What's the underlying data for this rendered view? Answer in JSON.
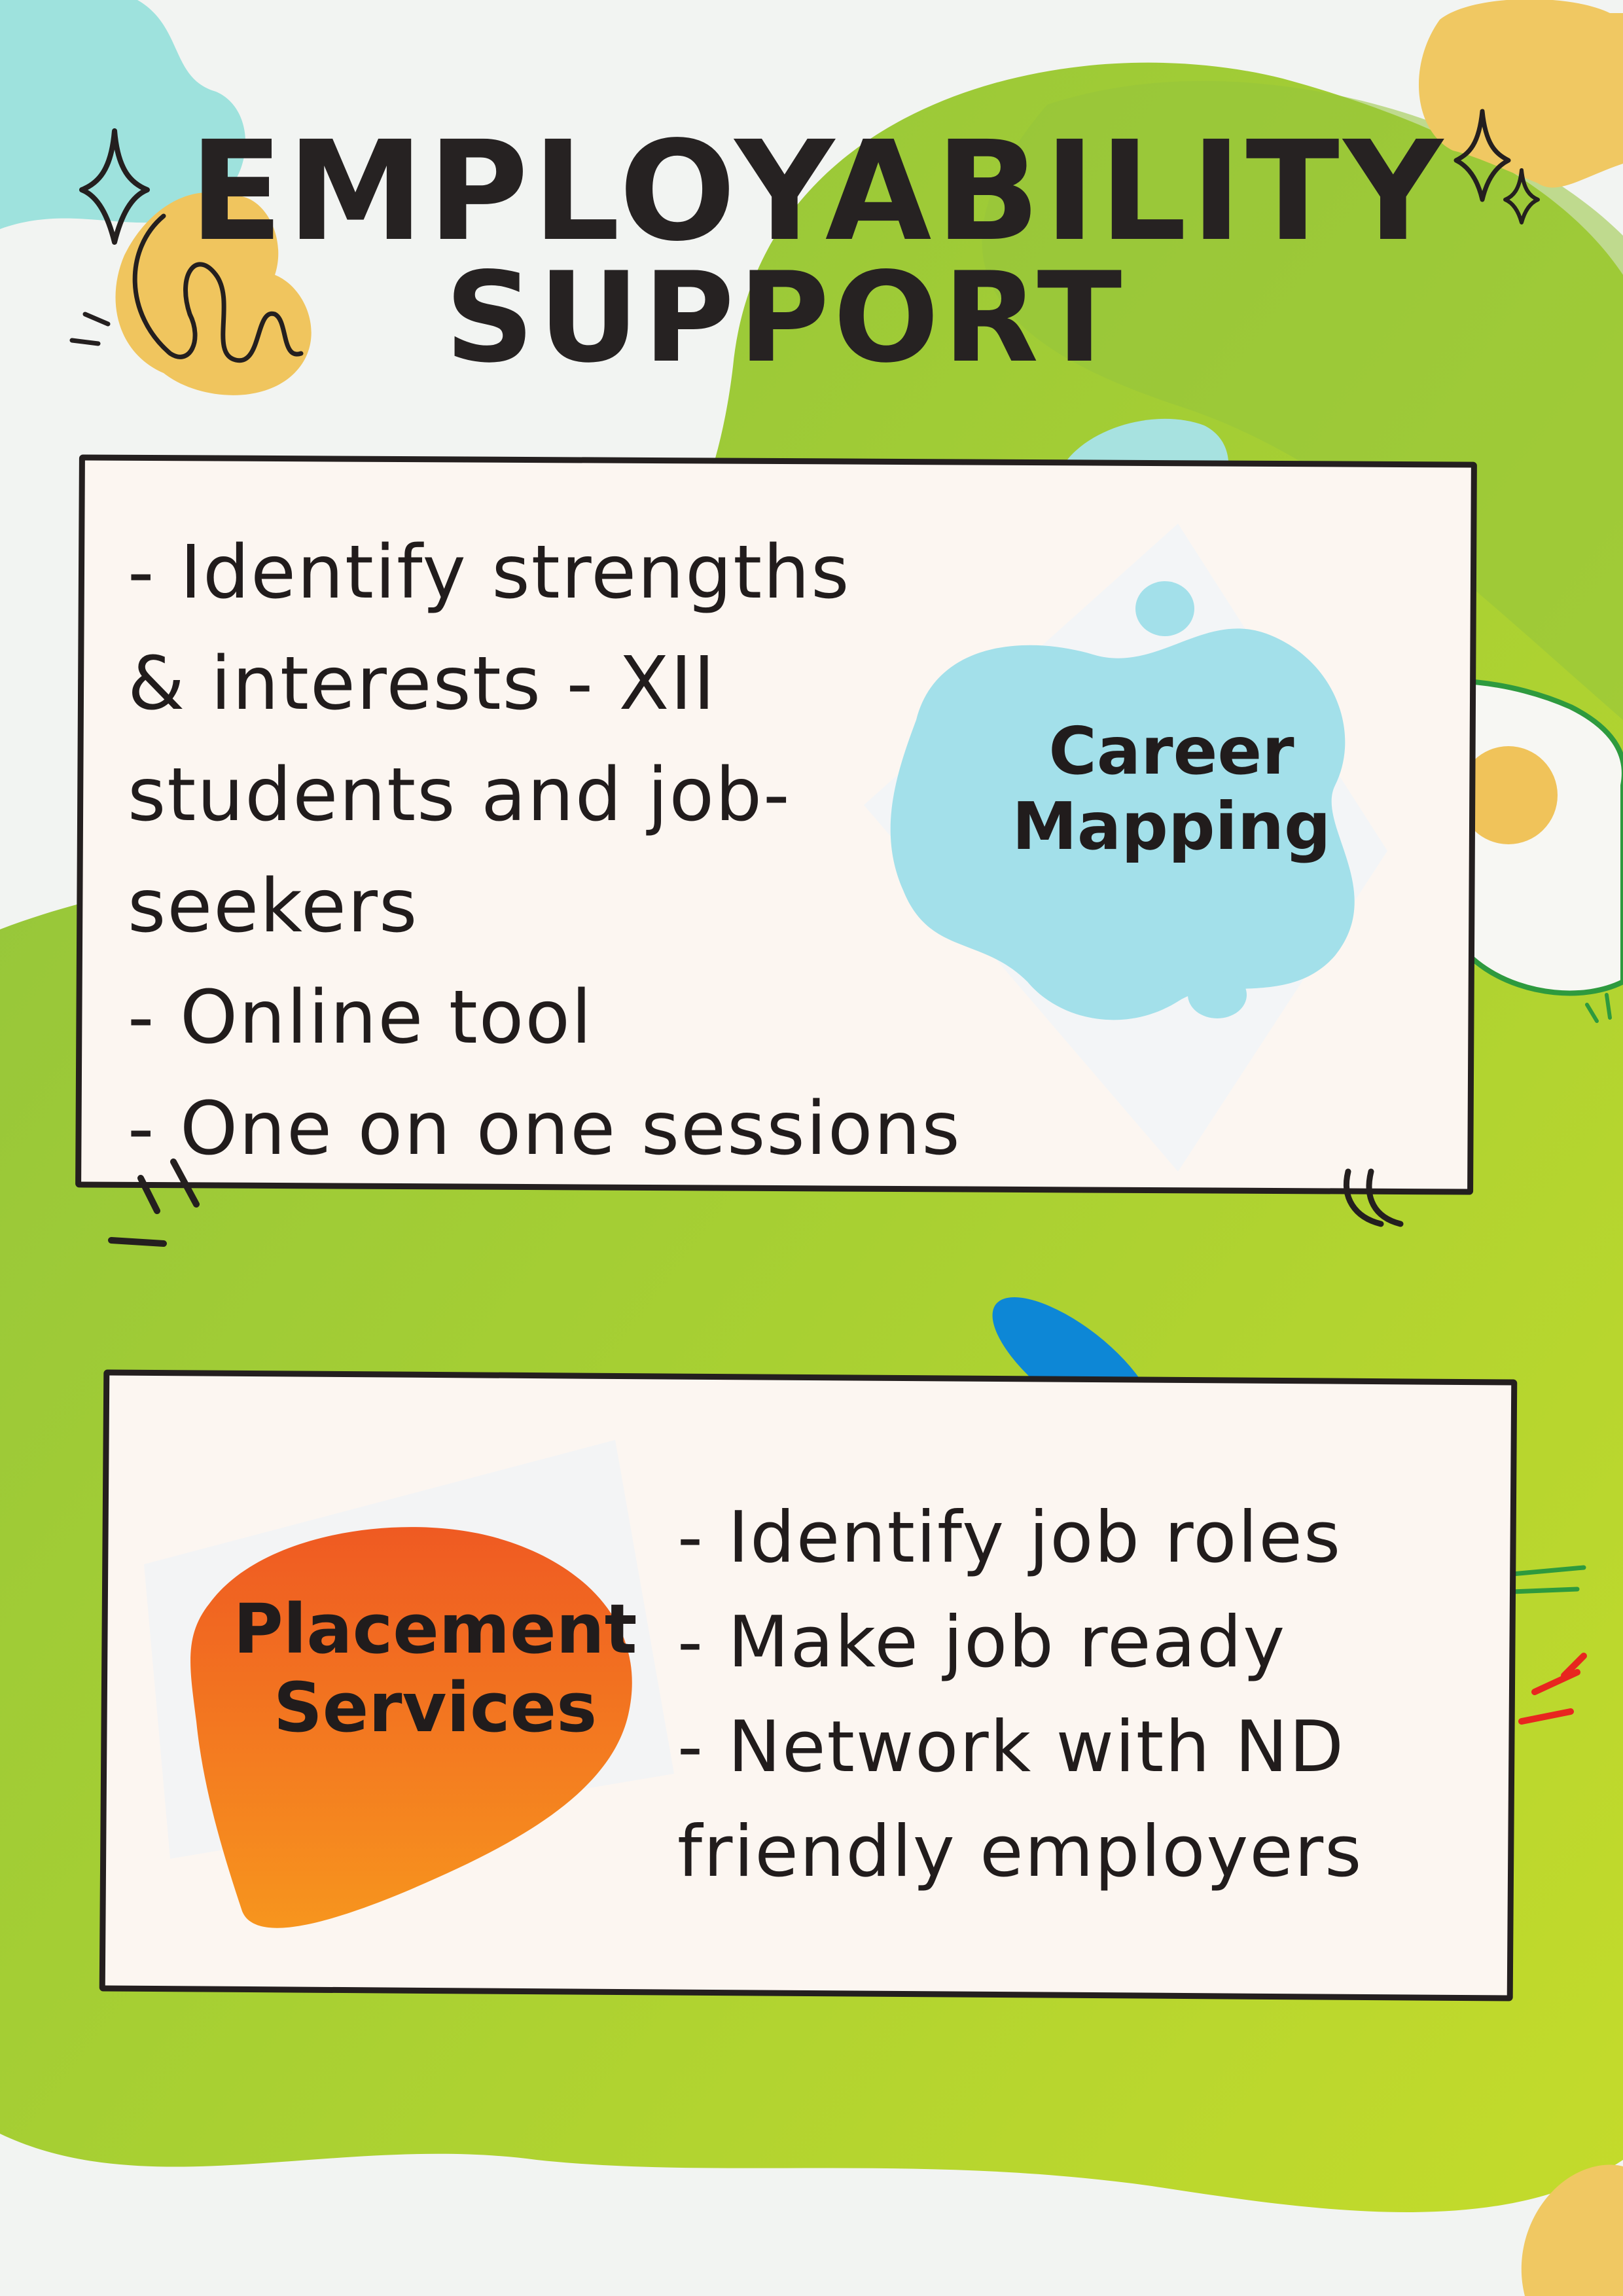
{
  "poster": {
    "title_line1": "EMPLOYABILITY",
    "title_line2": "SUPPORT"
  },
  "career_card": {
    "label_line1": "Career",
    "label_line2": "Mapping",
    "lines": [
      "- Identify strengths",
      "& interests - XII",
      "students and job-",
      "seekers",
      "- Online tool",
      "- One on one sessions"
    ]
  },
  "placement_card": {
    "label_line1": "Placement",
    "label_line2": "Services",
    "lines": [
      "- Identify job roles",
      "- Make job ready",
      "- Network with ND",
      "friendly employers"
    ]
  },
  "colors": {
    "green_light": "#c6dc2a",
    "green_mid": "#a3cc36",
    "green_dark": "#8fc23e",
    "yellow_blob": "#f0c862",
    "aqua_blob": "#9ee2dd",
    "blue_blob": "#a3e0ea",
    "orange_start": "#ef5a22",
    "orange_end": "#f7961e",
    "card_fill": "#fcf6f1",
    "ink": "#241f1f",
    "accent_blue": "#0d87d6",
    "accent_red": "#e8261f"
  }
}
